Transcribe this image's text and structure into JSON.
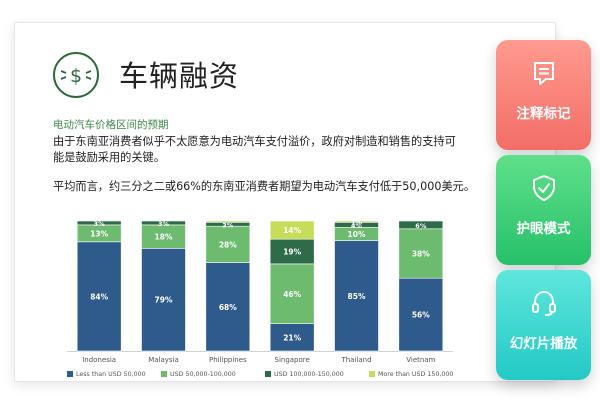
{
  "card": {
    "title": "车辆融资",
    "subtitle": "电动汽车价格区间的预期",
    "paragraph1": "由于东南亚消费者似乎不太愿意为电动汽车支付溢价，政府对制造和销售的支持可能是鼓励采用的关键。",
    "paragraph2": "平均而言，约三分之二或66%的东南亚消费者期望为电动汽车支付低于50,000美元。"
  },
  "sidebar": {
    "annotate_label": "注释标记",
    "eye_label": "护眼模式",
    "slideshow_label": "幻灯片播放"
  },
  "icons": [
    "dollar-circle-icon",
    "note-icon",
    "shield-check-icon",
    "headset-icon"
  ],
  "colors": {
    "title_green": "#2e6b3c",
    "subtitle_green": "#3f8a4a",
    "annotate_button": "#f26e67",
    "eye_button": "#27c06a",
    "slideshow_button": "#23c9c6"
  },
  "chart_data": {
    "type": "bar",
    "stacked": true,
    "categories": [
      "Indonesia",
      "Malaysia",
      "Philippines",
      "Singapore",
      "Thailand",
      "Vietnam"
    ],
    "series": [
      {
        "name": "Less than USD 50,000",
        "color": "#2f5b8c",
        "values": [
          84,
          79,
          68,
          21,
          85,
          56
        ],
        "labels": [
          "84%",
          "79%",
          "68%",
          "21%",
          "85%",
          "56%"
        ]
      },
      {
        "name": "USD 50,000-100,000",
        "color": "#6dbb6f",
        "values": [
          13,
          18,
          28,
          46,
          10,
          38
        ],
        "labels": [
          "13%",
          "18%",
          "28%",
          "46%",
          "10%",
          "38%"
        ]
      },
      {
        "name": "USD 100,000-150,000",
        "color": "#2e6b49",
        "values": [
          3,
          3,
          3,
          19,
          4,
          6
        ],
        "labels": [
          "3%",
          "3%",
          "3%",
          "19%",
          "4%",
          "6%"
        ]
      },
      {
        "name": "More than USD 150,000",
        "color": "#c7dd5a",
        "values": [
          0,
          0,
          1,
          14,
          1,
          0
        ],
        "labels": [
          "",
          "",
          "",
          "14%",
          "1%",
          ""
        ]
      }
    ],
    "ylim": [
      0,
      100
    ],
    "legend_position": "bottom"
  }
}
